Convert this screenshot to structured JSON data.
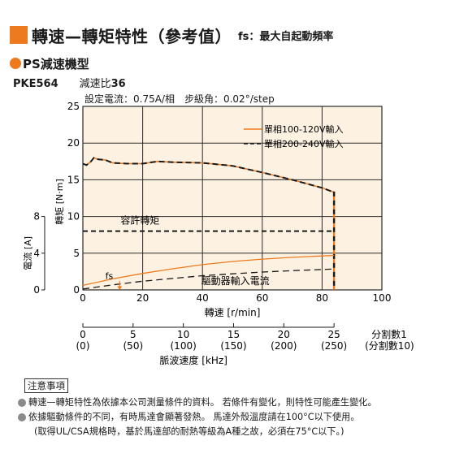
{
  "header": {
    "title": "轉速—轉矩特性（參考值）",
    "subtitle": "fs：最大自起動頻率",
    "series_name": "PS減速機型"
  },
  "model": {
    "name": "PKE564",
    "ratio_label": "減速比",
    "ratio_value": "36"
  },
  "settings": "設定電流：0.75A/相　步級角：0.02°/step",
  "colors": {
    "accent": "#ee7a1f",
    "plot_bg": "#fdf1e2",
    "dark": "#1a1a1a"
  },
  "chart_data": {
    "type": "line",
    "xlabel": "轉速 [r/min]",
    "xlim": [
      0,
      100
    ],
    "x_ticks": [
      0,
      20,
      40,
      60,
      80,
      100
    ],
    "ylabel": "轉矩 [N·m]",
    "ylim": [
      0,
      25
    ],
    "y_ticks": [
      0,
      5,
      10,
      15,
      20,
      25
    ],
    "ylabel2": "電流 [A]",
    "y2_ticks": [
      0,
      4,
      8
    ],
    "y2_per_unit": 0.8,
    "series": [
      {
        "name": "單相100-120V輸入",
        "style": "solid",
        "color": "#ee7a1f",
        "x": [
          0,
          1.2,
          2.5,
          3.7,
          5,
          7.5,
          10,
          15,
          20,
          25,
          30,
          40,
          50,
          60,
          70,
          80,
          84
        ],
        "y": [
          17.2,
          17.0,
          17.4,
          18.0,
          17.8,
          17.7,
          17.3,
          17.2,
          17.2,
          17.5,
          17.4,
          17.3,
          16.9,
          16.0,
          15.0,
          13.9,
          13.3
        ]
      },
      {
        "name": "單相200-240V輸入",
        "style": "dashed",
        "color": "#1a1a1a",
        "x": [
          0,
          1.2,
          2.5,
          3.7,
          5,
          7.5,
          10,
          15,
          20,
          25,
          30,
          40,
          50,
          60,
          70,
          80,
          84
        ],
        "y": [
          17.2,
          17.0,
          17.4,
          18.0,
          17.8,
          17.7,
          17.3,
          17.2,
          17.2,
          17.5,
          17.4,
          17.3,
          16.9,
          16.0,
          15.0,
          13.9,
          13.3
        ]
      }
    ],
    "current_series": [
      {
        "name": "單相100-120V輸入",
        "style": "solid",
        "color": "#ee7a1f",
        "x": [
          0,
          10,
          20,
          30,
          40,
          50,
          60,
          70,
          80,
          84
        ],
        "y_current": [
          0.5,
          1.2,
          1.8,
          2.3,
          2.75,
          3.1,
          3.35,
          3.55,
          3.7,
          3.75
        ]
      },
      {
        "name": "單相200-240V輸入",
        "style": "dashed",
        "color": "#1a1a1a",
        "x": [
          0,
          10,
          20,
          30,
          40,
          50,
          60,
          70,
          80,
          84
        ],
        "y_current": [
          0.1,
          0.55,
          0.95,
          1.25,
          1.55,
          1.75,
          1.95,
          2.1,
          2.22,
          2.28
        ]
      }
    ],
    "max_speed": 84,
    "allowable_torque": {
      "label": "容許轉矩",
      "value": 8
    },
    "driver_current_label": "驅動器輸入電流",
    "fs_label": "fs",
    "fs_x": 12.3,
    "legend_position": "top-right",
    "grid": true,
    "pulse_axis": {
      "label": "脈波速度 [kHz]",
      "ticks_div1": [
        "0",
        "5",
        "10",
        "15",
        "20",
        "25"
      ],
      "ticks_div10": [
        "(0)",
        "(50)",
        "(100)",
        "(150)",
        "(200)",
        "(250)"
      ],
      "div1_label": "分割數1",
      "div10_label": "(分割數10)"
    }
  },
  "notes": {
    "heading": "注意事項",
    "lines": [
      "轉速—轉矩特性為依據本公司測量條件的資料。 若條件有變化，則特性可能產生變化。",
      "依據驅動條件的不同，有時馬達會顯著發熱。 馬達外殼溫度請在100°C以下使用。"
    ],
    "indent_line": "(取得UL/CSA規格時，基於馬達部的耐熱等級為A種之故，必須在75°C以下。)"
  }
}
